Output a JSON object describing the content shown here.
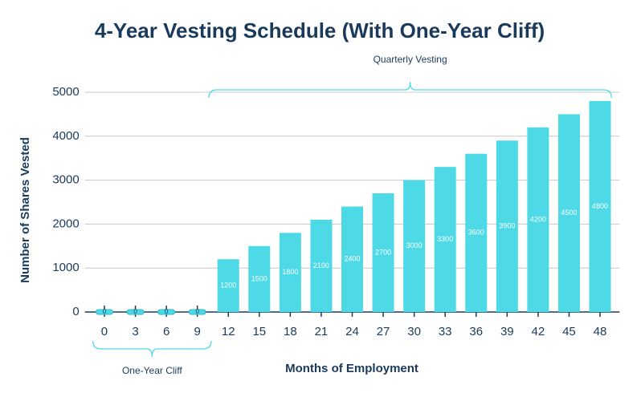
{
  "chart_data": {
    "type": "bar",
    "title": "4-Year Vesting Schedule (With One-Year Cliff)",
    "x_label": "Months of Employment",
    "y_label": "Number of Shares Vested",
    "categories": [
      "0",
      "3",
      "6",
      "9",
      "12",
      "15",
      "18",
      "21",
      "24",
      "27",
      "30",
      "33",
      "36",
      "39",
      "42",
      "45",
      "48"
    ],
    "values": [
      0,
      0,
      0,
      0,
      1200,
      1500,
      1800,
      2100,
      2400,
      2700,
      3000,
      3300,
      3600,
      3900,
      4200,
      4500,
      4800
    ],
    "color": "#4dd9e6",
    "ylim": [
      0,
      5000
    ],
    "yticks": [
      0,
      1000,
      2000,
      3000,
      4000,
      5000
    ],
    "grid": true,
    "annotations": [
      "One-Year Cliff",
      "Quarterly Vesting"
    ]
  }
}
